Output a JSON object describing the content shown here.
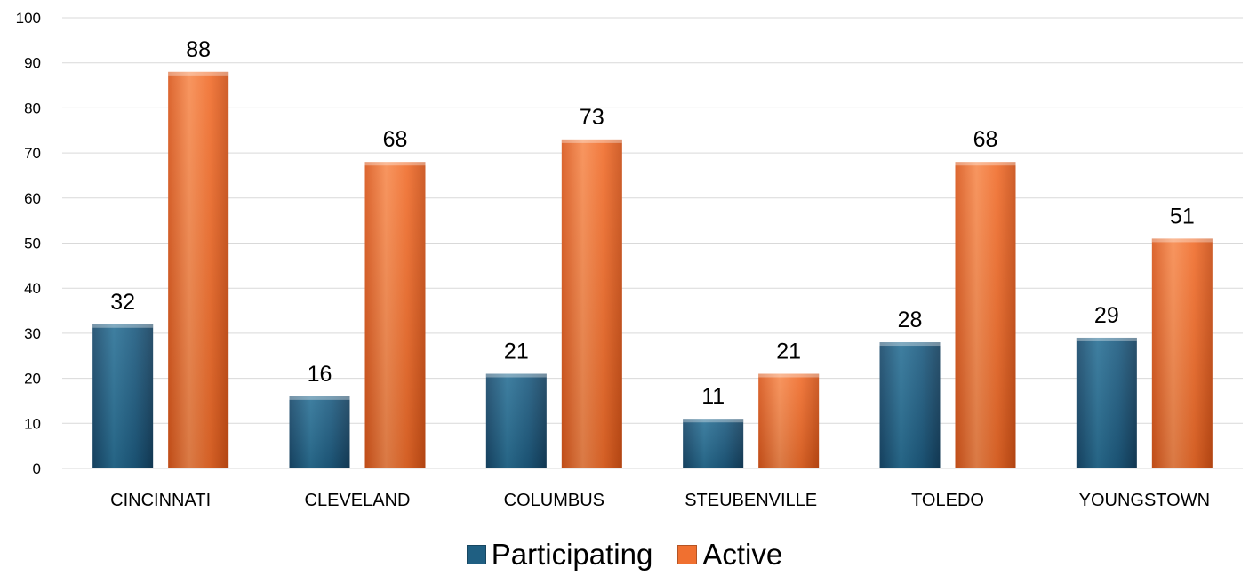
{
  "chart_data": {
    "type": "bar",
    "title": "",
    "xlabel": "",
    "ylabel": "",
    "categories": [
      "CINCINNATI",
      "CLEVELAND",
      "COLUMBUS",
      "STEUBENVILLE",
      "TOLEDO",
      "YOUNGSTOWN"
    ],
    "series": [
      {
        "name": "Participating",
        "values": [
          32,
          16,
          21,
          11,
          28,
          29
        ],
        "color": "#1f5f82"
      },
      {
        "name": "Active",
        "values": [
          88,
          68,
          73,
          21,
          68,
          51
        ],
        "color": "#f07030"
      }
    ],
    "ylim": [
      0,
      100
    ],
    "yticks": [
      0,
      10,
      20,
      30,
      40,
      50,
      60,
      70,
      80,
      90,
      100
    ],
    "grid": true,
    "data_labels": true,
    "legend_position": "bottom"
  }
}
